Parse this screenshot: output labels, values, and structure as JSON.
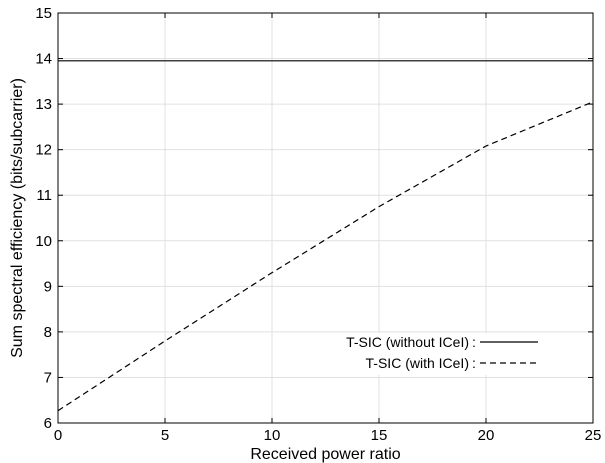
{
  "chart_data": {
    "type": "line",
    "title": "",
    "xlabel": "Received power ratio",
    "ylabel": "Sum spectral efficiency (bits/subcarrier)",
    "xlim": [
      0,
      25
    ],
    "ylim": [
      6,
      15
    ],
    "xticks": [
      "0",
      "5",
      "10",
      "15",
      "20",
      "25"
    ],
    "yticks": [
      "6",
      "7",
      "8",
      "9",
      "10",
      "11",
      "12",
      "13",
      "14",
      "15"
    ],
    "grid": true,
    "legend_placement": "bottom-right",
    "series": [
      {
        "name": "T-SIC (without ICeI)",
        "line_style": "solid",
        "color": "#000000",
        "x": [
          0,
          25
        ],
        "y": [
          13.95,
          13.95
        ]
      },
      {
        "name": "T-SIC (with ICeI)",
        "line_style": "dashed",
        "color": "#000000",
        "x": [
          0,
          5,
          10,
          15,
          20,
          25
        ],
        "y": [
          6.27,
          7.8,
          9.3,
          10.75,
          12.08,
          13.05
        ]
      }
    ]
  }
}
